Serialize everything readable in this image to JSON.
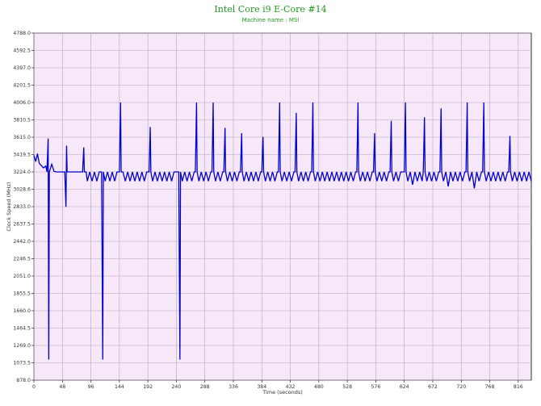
{
  "chart_data": {
    "type": "line",
    "title": "Intel Core i9 E-Core #14",
    "subtitle": "Machine name : MSI",
    "xlabel": "Time (seconds)",
    "ylabel": "Clock Speed (MHz)",
    "xlim": [
      0,
      838
    ],
    "ylim": [
      878.0,
      4788.0
    ],
    "xticks": [
      0,
      48,
      96,
      144,
      192,
      240,
      288,
      336,
      384,
      432,
      480,
      528,
      576,
      624,
      672,
      720,
      768,
      816
    ],
    "yticks": [
      878.0,
      1073.5,
      1269.0,
      1464.5,
      1660.0,
      1855.5,
      2051.0,
      2246.5,
      2442.0,
      2637.5,
      2833.0,
      3028.6,
      3224.0,
      3419.5,
      3615.0,
      3810.5,
      4006.0,
      4201.5,
      4397.0,
      4592.5,
      4788.0
    ],
    "grid": true,
    "colors": {
      "line": "#0000cc",
      "plot_bg": "#f7e8f9",
      "grid": "#b5a3b7",
      "text": "#333333",
      "title": "#1f9a1f"
    },
    "series": [
      {
        "values": [
          [
            0,
            3410
          ],
          [
            3,
            3340
          ],
          [
            6,
            3430
          ],
          [
            9,
            3320
          ],
          [
            12,
            3300
          ],
          [
            16,
            3270
          ],
          [
            20,
            3290
          ],
          [
            22,
            3224
          ],
          [
            24,
            3600
          ],
          [
            25,
            1110
          ],
          [
            26,
            3224
          ],
          [
            30,
            3310
          ],
          [
            34,
            3230
          ],
          [
            38,
            3224
          ],
          [
            44,
            3224
          ],
          [
            48,
            3224
          ],
          [
            50,
            3224
          ],
          [
            52,
            3224
          ],
          [
            54,
            2830
          ],
          [
            55,
            3520
          ],
          [
            56,
            3224
          ],
          [
            60,
            3224
          ],
          [
            64,
            3224
          ],
          [
            68,
            3224
          ],
          [
            72,
            3224
          ],
          [
            76,
            3224
          ],
          [
            80,
            3224
          ],
          [
            82,
            3224
          ],
          [
            84,
            3500
          ],
          [
            85,
            3224
          ],
          [
            88,
            3224
          ],
          [
            90,
            3120
          ],
          [
            94,
            3224
          ],
          [
            98,
            3120
          ],
          [
            102,
            3224
          ],
          [
            106,
            3120
          ],
          [
            110,
            3224
          ],
          [
            114,
            3224
          ],
          [
            116,
            1110
          ],
          [
            117,
            3224
          ],
          [
            120,
            3120
          ],
          [
            124,
            3224
          ],
          [
            128,
            3120
          ],
          [
            132,
            3224
          ],
          [
            136,
            3120
          ],
          [
            140,
            3224
          ],
          [
            144,
            3224
          ],
          [
            146,
            4006
          ],
          [
            147,
            3224
          ],
          [
            150,
            3224
          ],
          [
            154,
            3120
          ],
          [
            158,
            3224
          ],
          [
            162,
            3120
          ],
          [
            166,
            3224
          ],
          [
            170,
            3120
          ],
          [
            174,
            3224
          ],
          [
            178,
            3120
          ],
          [
            182,
            3224
          ],
          [
            186,
            3120
          ],
          [
            190,
            3224
          ],
          [
            194,
            3224
          ],
          [
            196,
            3730
          ],
          [
            197,
            3224
          ],
          [
            200,
            3120
          ],
          [
            204,
            3224
          ],
          [
            208,
            3120
          ],
          [
            212,
            3224
          ],
          [
            216,
            3120
          ],
          [
            220,
            3224
          ],
          [
            224,
            3120
          ],
          [
            228,
            3224
          ],
          [
            232,
            3120
          ],
          [
            236,
            3224
          ],
          [
            240,
            3224
          ],
          [
            244,
            3224
          ],
          [
            246,
            1110
          ],
          [
            247,
            3224
          ],
          [
            250,
            3120
          ],
          [
            254,
            3224
          ],
          [
            258,
            3120
          ],
          [
            262,
            3224
          ],
          [
            266,
            3120
          ],
          [
            270,
            3224
          ],
          [
            272,
            3224
          ],
          [
            274,
            4006
          ],
          [
            275,
            3224
          ],
          [
            278,
            3120
          ],
          [
            282,
            3224
          ],
          [
            286,
            3120
          ],
          [
            290,
            3224
          ],
          [
            294,
            3120
          ],
          [
            298,
            3224
          ],
          [
            300,
            3224
          ],
          [
            302,
            4006
          ],
          [
            303,
            3224
          ],
          [
            306,
            3120
          ],
          [
            310,
            3224
          ],
          [
            314,
            3120
          ],
          [
            318,
            3224
          ],
          [
            320,
            3224
          ],
          [
            322,
            3720
          ],
          [
            323,
            3224
          ],
          [
            326,
            3120
          ],
          [
            330,
            3224
          ],
          [
            334,
            3120
          ],
          [
            338,
            3224
          ],
          [
            342,
            3120
          ],
          [
            346,
            3224
          ],
          [
            348,
            3224
          ],
          [
            350,
            3660
          ],
          [
            351,
            3224
          ],
          [
            354,
            3120
          ],
          [
            358,
            3224
          ],
          [
            362,
            3120
          ],
          [
            366,
            3224
          ],
          [
            370,
            3120
          ],
          [
            374,
            3224
          ],
          [
            378,
            3120
          ],
          [
            382,
            3224
          ],
          [
            384,
            3224
          ],
          [
            386,
            3620
          ],
          [
            387,
            3224
          ],
          [
            390,
            3120
          ],
          [
            394,
            3224
          ],
          [
            398,
            3120
          ],
          [
            402,
            3224
          ],
          [
            406,
            3120
          ],
          [
            410,
            3224
          ],
          [
            412,
            3224
          ],
          [
            414,
            4006
          ],
          [
            415,
            3224
          ],
          [
            418,
            3120
          ],
          [
            422,
            3224
          ],
          [
            426,
            3120
          ],
          [
            430,
            3224
          ],
          [
            434,
            3120
          ],
          [
            438,
            3224
          ],
          [
            440,
            3224
          ],
          [
            442,
            3890
          ],
          [
            443,
            3224
          ],
          [
            446,
            3120
          ],
          [
            450,
            3224
          ],
          [
            454,
            3120
          ],
          [
            458,
            3224
          ],
          [
            462,
            3120
          ],
          [
            466,
            3224
          ],
          [
            468,
            3224
          ],
          [
            470,
            4006
          ],
          [
            471,
            3224
          ],
          [
            474,
            3120
          ],
          [
            478,
            3224
          ],
          [
            482,
            3120
          ],
          [
            486,
            3224
          ],
          [
            490,
            3120
          ],
          [
            494,
            3224
          ],
          [
            498,
            3120
          ],
          [
            502,
            3224
          ],
          [
            506,
            3120
          ],
          [
            510,
            3224
          ],
          [
            514,
            3120
          ],
          [
            518,
            3224
          ],
          [
            522,
            3120
          ],
          [
            526,
            3224
          ],
          [
            530,
            3120
          ],
          [
            534,
            3224
          ],
          [
            538,
            3120
          ],
          [
            542,
            3224
          ],
          [
            544,
            3224
          ],
          [
            546,
            4006
          ],
          [
            547,
            3224
          ],
          [
            550,
            3120
          ],
          [
            554,
            3224
          ],
          [
            558,
            3120
          ],
          [
            562,
            3224
          ],
          [
            566,
            3120
          ],
          [
            570,
            3224
          ],
          [
            572,
            3224
          ],
          [
            574,
            3660
          ],
          [
            575,
            3224
          ],
          [
            578,
            3120
          ],
          [
            582,
            3224
          ],
          [
            586,
            3120
          ],
          [
            590,
            3224
          ],
          [
            594,
            3120
          ],
          [
            598,
            3224
          ],
          [
            600,
            3224
          ],
          [
            602,
            3800
          ],
          [
            603,
            3224
          ],
          [
            606,
            3120
          ],
          [
            610,
            3224
          ],
          [
            614,
            3120
          ],
          [
            618,
            3224
          ],
          [
            622,
            3224
          ],
          [
            624,
            3224
          ],
          [
            626,
            4006
          ],
          [
            627,
            3224
          ],
          [
            630,
            3120
          ],
          [
            634,
            3224
          ],
          [
            638,
            3080
          ],
          [
            642,
            3224
          ],
          [
            646,
            3120
          ],
          [
            650,
            3224
          ],
          [
            654,
            3120
          ],
          [
            656,
            3224
          ],
          [
            658,
            3840
          ],
          [
            659,
            3224
          ],
          [
            662,
            3120
          ],
          [
            666,
            3224
          ],
          [
            670,
            3120
          ],
          [
            674,
            3224
          ],
          [
            678,
            3120
          ],
          [
            682,
            3224
          ],
          [
            684,
            3224
          ],
          [
            686,
            3940
          ],
          [
            687,
            3224
          ],
          [
            690,
            3120
          ],
          [
            694,
            3224
          ],
          [
            698,
            3060
          ],
          [
            702,
            3224
          ],
          [
            706,
            3120
          ],
          [
            710,
            3224
          ],
          [
            714,
            3120
          ],
          [
            718,
            3224
          ],
          [
            722,
            3120
          ],
          [
            726,
            3224
          ],
          [
            728,
            3224
          ],
          [
            730,
            4006
          ],
          [
            731,
            3224
          ],
          [
            734,
            3120
          ],
          [
            738,
            3224
          ],
          [
            742,
            3040
          ],
          [
            746,
            3224
          ],
          [
            750,
            3120
          ],
          [
            754,
            3224
          ],
          [
            756,
            3224
          ],
          [
            758,
            4006
          ],
          [
            759,
            3224
          ],
          [
            762,
            3120
          ],
          [
            766,
            3224
          ],
          [
            770,
            3120
          ],
          [
            774,
            3224
          ],
          [
            778,
            3120
          ],
          [
            782,
            3224
          ],
          [
            786,
            3120
          ],
          [
            790,
            3224
          ],
          [
            794,
            3120
          ],
          [
            798,
            3224
          ],
          [
            800,
            3224
          ],
          [
            802,
            3630
          ],
          [
            803,
            3224
          ],
          [
            806,
            3120
          ],
          [
            810,
            3224
          ],
          [
            814,
            3120
          ],
          [
            818,
            3224
          ],
          [
            822,
            3120
          ],
          [
            826,
            3224
          ],
          [
            830,
            3120
          ],
          [
            834,
            3224
          ],
          [
            838,
            3120
          ]
        ]
      }
    ]
  }
}
